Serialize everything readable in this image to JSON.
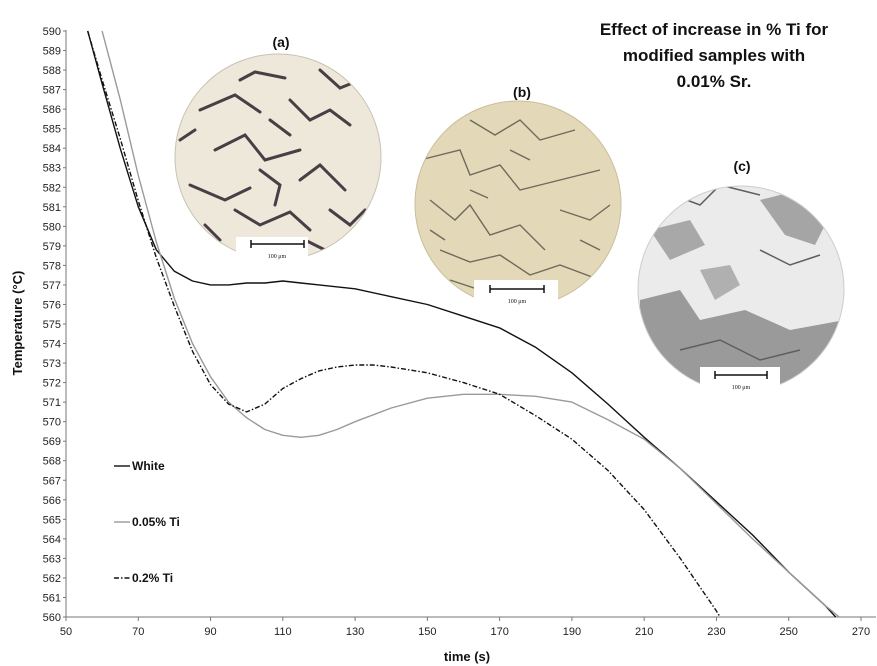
{
  "chart_data": {
    "type": "line",
    "title": [
      "Effect of increase in % Ti for",
      "modified samples with",
      "0.01% Sr."
    ],
    "xlabel": "time (s)",
    "ylabel": "Temperature (°C)",
    "xlim": [
      50,
      270
    ],
    "ylim": [
      560,
      590
    ],
    "x_ticks": [
      "50",
      "70",
      "90",
      "110",
      "130",
      "150",
      "170",
      "190",
      "210",
      "230",
      "250",
      "270"
    ],
    "y_ticks": [
      "560",
      "561",
      "562",
      "563",
      "564",
      "565",
      "566",
      "567",
      "568",
      "569",
      "570",
      "571",
      "572",
      "573",
      "574",
      "575",
      "576",
      "577",
      "578",
      "579",
      "580",
      "581",
      "582",
      "583",
      "584",
      "585",
      "586",
      "587",
      "588",
      "589",
      "590"
    ],
    "grid": false,
    "legend_position": "bottom-left",
    "series": [
      {
        "name": "White",
        "color": "#111111",
        "dash": "solid",
        "x": [
          56,
          60,
          65,
          70,
          75,
          80,
          85,
          90,
          95,
          100,
          105,
          110,
          115,
          120,
          130,
          140,
          150,
          160,
          170,
          180,
          190,
          200,
          210,
          220,
          230,
          240,
          250,
          260,
          263
        ],
        "y": [
          590,
          587.3,
          584,
          581,
          578.8,
          577.7,
          577.2,
          577.0,
          577.0,
          577.1,
          577.1,
          577.2,
          577.1,
          577.0,
          576.8,
          576.4,
          576.0,
          575.4,
          574.8,
          573.8,
          572.5,
          570.9,
          569.2,
          567.6,
          565.9,
          564.2,
          562.3,
          560.6,
          560.0
        ]
      },
      {
        "name": "0.05% Ti",
        "color": "#9a9a9a",
        "dash": "solid",
        "x": [
          60,
          65,
          70,
          75,
          80,
          85,
          90,
          95,
          100,
          105,
          110,
          115,
          120,
          125,
          130,
          140,
          150,
          160,
          170,
          180,
          190,
          200,
          210,
          220,
          230,
          240,
          250,
          260,
          264
        ],
        "y": [
          590,
          586.5,
          582.6,
          579.2,
          576.3,
          574.0,
          572.3,
          571.0,
          570.2,
          569.6,
          569.3,
          569.2,
          569.3,
          569.6,
          570.0,
          570.7,
          571.2,
          571.4,
          571.4,
          571.3,
          571.0,
          570.1,
          569.1,
          567.6,
          565.8,
          564.0,
          562.3,
          560.6,
          560.0
        ]
      },
      {
        "name": "0.2% Ti",
        "color": "#111111",
        "dash": "dashdot",
        "x": [
          56,
          60,
          65,
          70,
          75,
          80,
          85,
          90,
          95,
          100,
          105,
          110,
          115,
          120,
          125,
          130,
          135,
          140,
          150,
          160,
          170,
          180,
          190,
          200,
          210,
          220,
          230,
          231
        ],
        "y": [
          590,
          587.5,
          584.5,
          581.3,
          578.4,
          575.9,
          573.6,
          571.9,
          570.9,
          570.5,
          570.9,
          571.7,
          572.2,
          572.6,
          572.8,
          572.9,
          572.9,
          572.8,
          572.5,
          572.0,
          571.4,
          570.3,
          569.1,
          567.5,
          565.5,
          563.0,
          560.3,
          560.0
        ]
      }
    ],
    "insets": [
      {
        "label": "(a)",
        "scale_bar": "100 μm",
        "bg_color": "#ede8da",
        "feature_color": "#4a3e46"
      },
      {
        "label": "(b)",
        "scale_bar": "100 μm",
        "bg_color": "#e3d8b8",
        "feature_color": "#6e6a5c"
      },
      {
        "label": "(c)",
        "scale_bar": "100 μm",
        "bg_color": "#ebebeb",
        "feature_color": "#7a7a7a"
      }
    ]
  }
}
